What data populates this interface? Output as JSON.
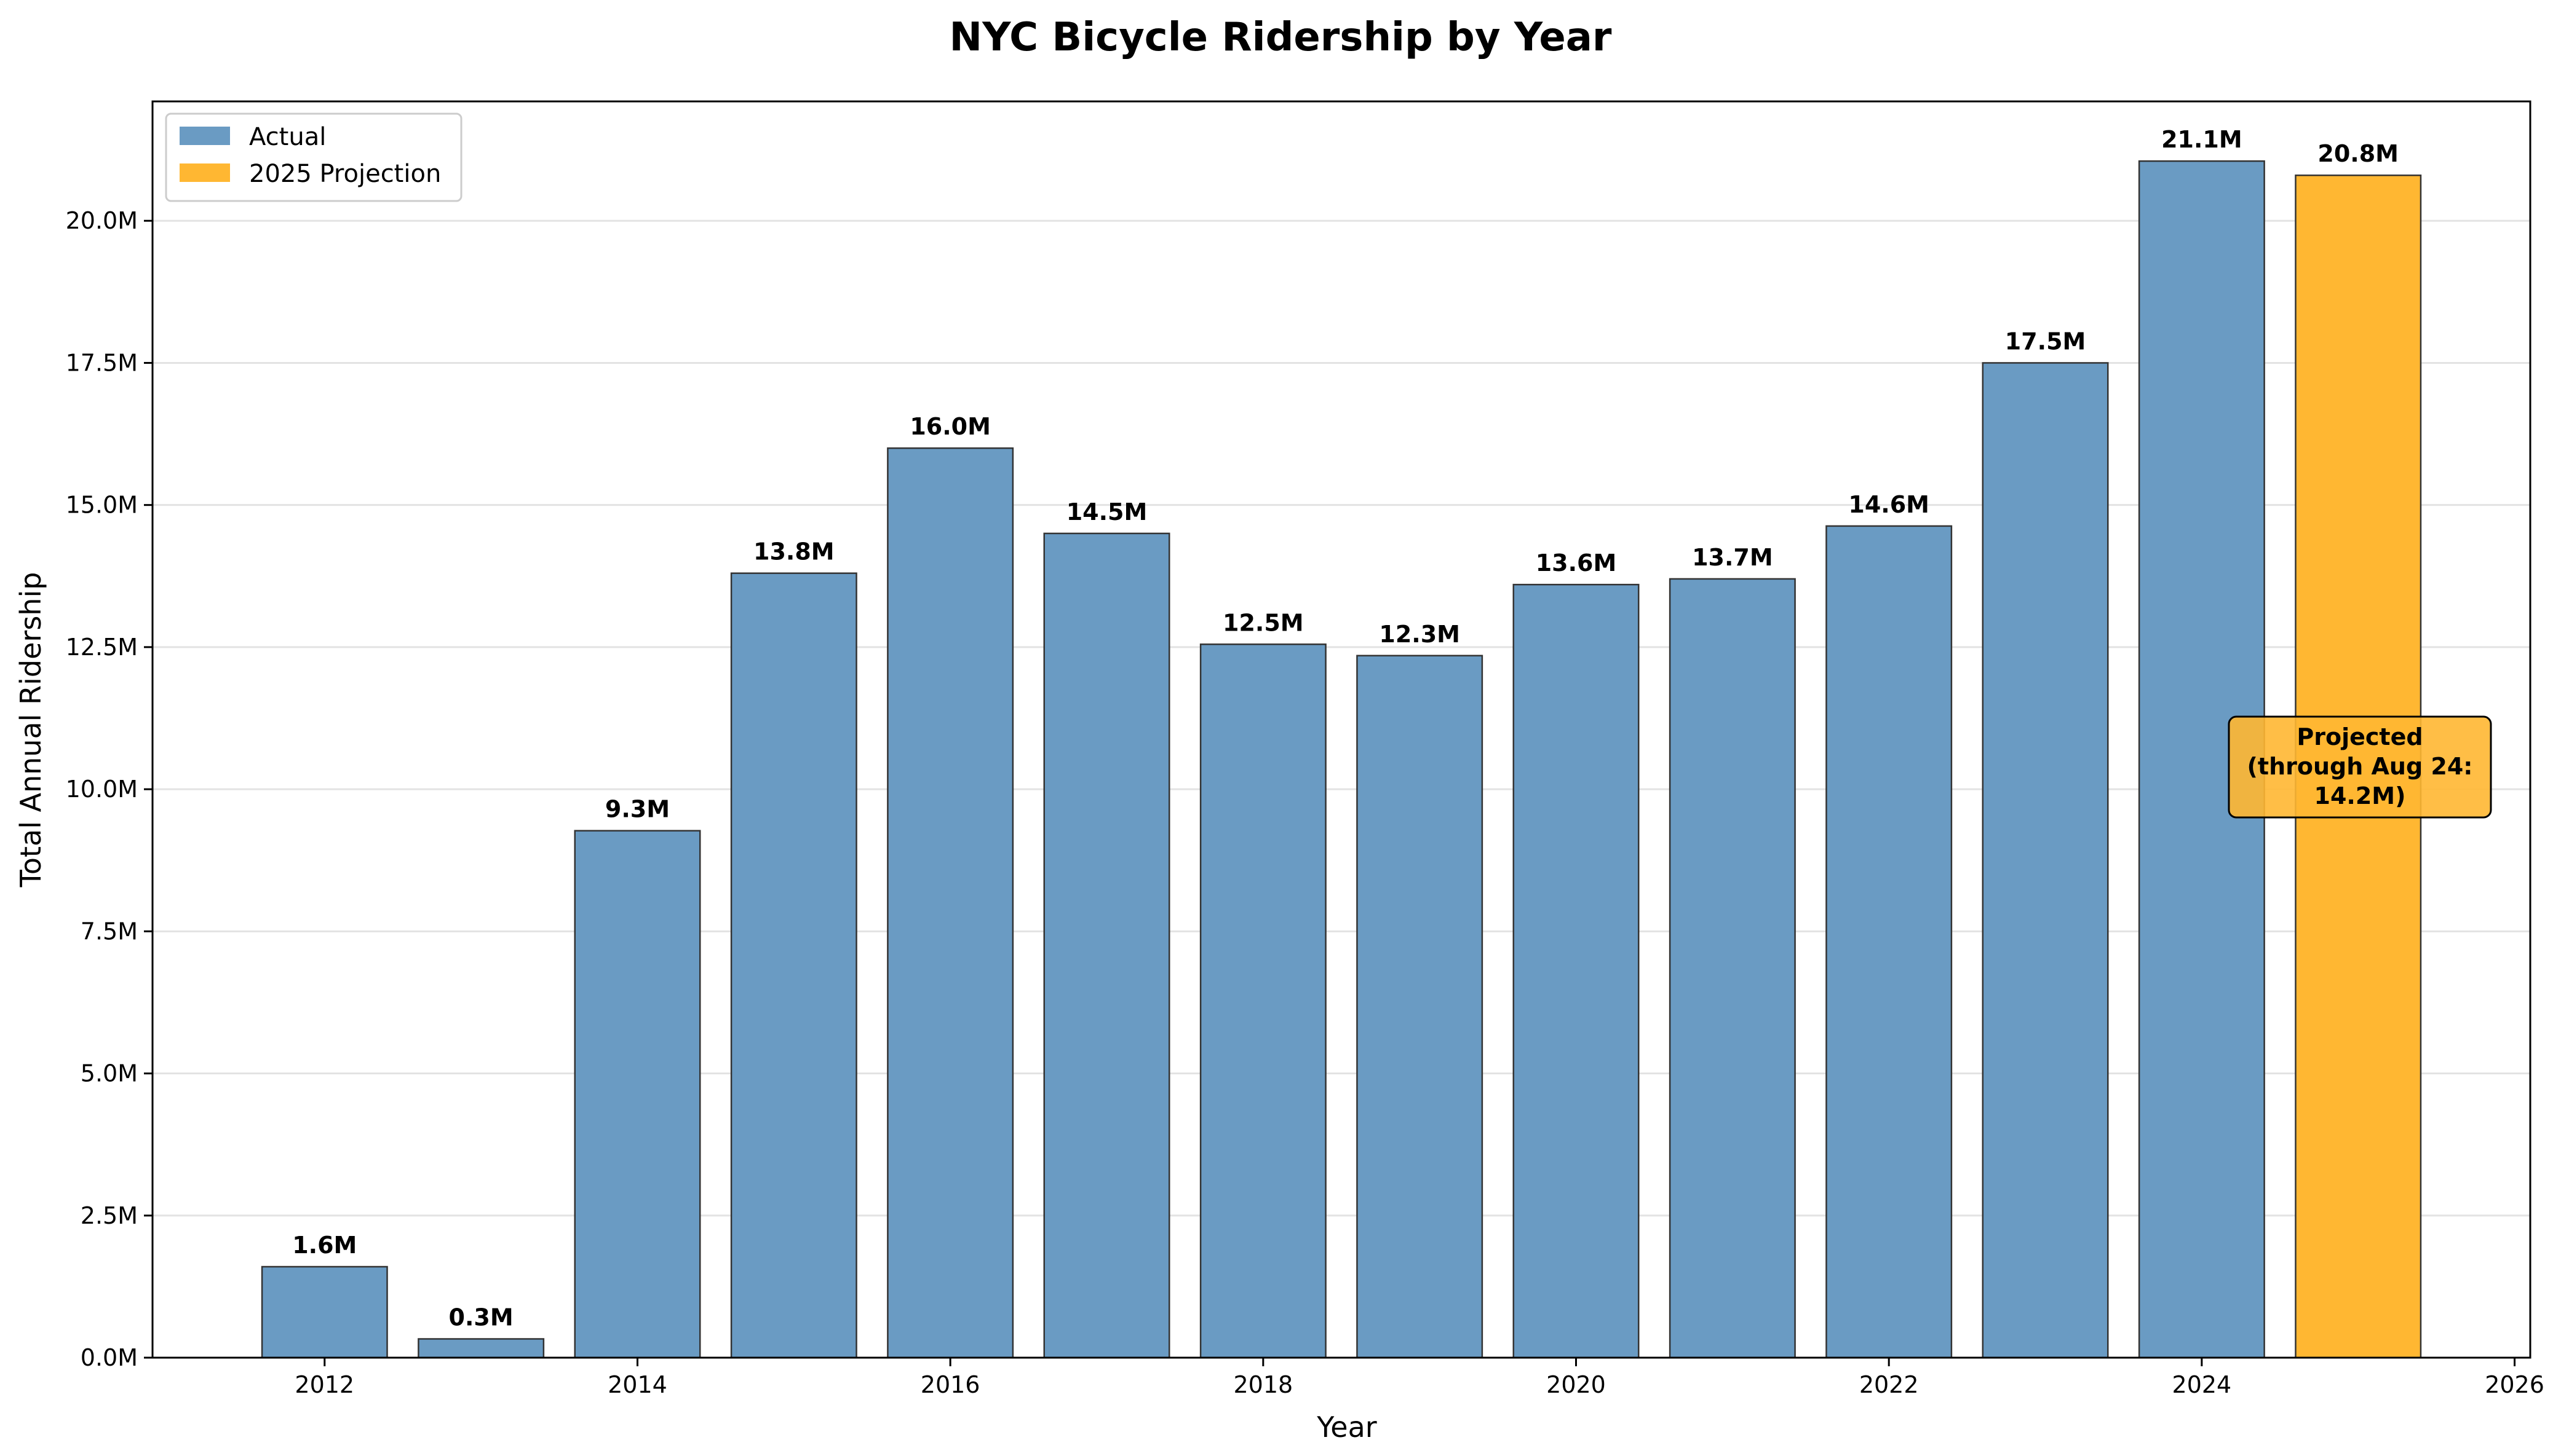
{
  "chart_data": {
    "type": "bar",
    "title": "NYC Bicycle Ridership by Year",
    "xlabel": "Year",
    "ylabel": "Total Annual Ridership",
    "xlim": [
      2010.9,
      2026.1
    ],
    "ylim": [
      0,
      22.1
    ],
    "x_ticks": [
      "2012",
      "2014",
      "2016",
      "2018",
      "2020",
      "2022",
      "2024",
      "2026"
    ],
    "y_ticks": [
      "0.0M",
      "2.5M",
      "5.0M",
      "7.5M",
      "10.0M",
      "12.5M",
      "15.0M",
      "17.5M",
      "20.0M"
    ],
    "grid": "y-axis, light gray",
    "legend_position": "top-left",
    "colors": {
      "actual": "#6a9bc3",
      "projection": "#ffb732",
      "edge": "#333333"
    },
    "series": [
      {
        "name": "Actual",
        "x": [
          2012,
          2013,
          2014,
          2015,
          2016,
          2017,
          2018,
          2019,
          2020,
          2021,
          2022,
          2023,
          2024
        ],
        "values": [
          1.6,
          0.33,
          9.27,
          13.8,
          16.0,
          14.5,
          12.55,
          12.35,
          13.6,
          13.7,
          14.63,
          17.5,
          21.05
        ],
        "labels": [
          "1.6M",
          "0.3M",
          "9.3M",
          "13.8M",
          "16.0M",
          "14.5M",
          "12.5M",
          "12.3M",
          "13.6M",
          "13.7M",
          "14.6M",
          "17.5M",
          "21.1M"
        ]
      },
      {
        "name": "2025 Projection",
        "x": [
          2025
        ],
        "values": [
          20.8
        ],
        "labels": [
          "20.8M"
        ]
      }
    ],
    "annotation": {
      "lines": [
        "Projected",
        "(through Aug 24:",
        "14.2M)"
      ]
    }
  }
}
